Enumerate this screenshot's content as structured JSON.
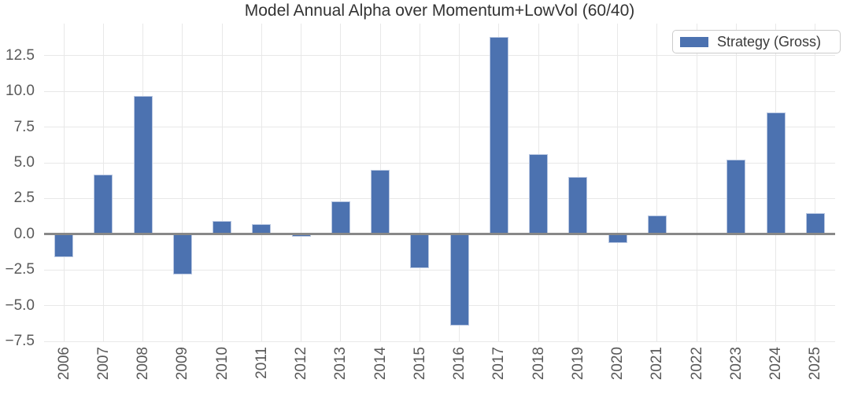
{
  "chart_data": {
    "type": "bar",
    "title": "Model Annual Alpha over Momentum+LowVol (60/40)",
    "categories": [
      "2006",
      "2007",
      "2008",
      "2009",
      "2010",
      "2011",
      "2012",
      "2013",
      "2014",
      "2015",
      "2016",
      "2017",
      "2018",
      "2019",
      "2020",
      "2021",
      "2022",
      "2023",
      "2024",
      "2025"
    ],
    "series": [
      {
        "name": "Strategy (Gross)",
        "values": [
          -1.6,
          4.2,
          9.7,
          -2.8,
          0.9,
          0.7,
          -0.2,
          2.3,
          4.5,
          -2.4,
          -6.4,
          13.8,
          5.6,
          4.0,
          -0.6,
          1.3,
          0.0,
          5.2,
          8.5,
          1.5
        ]
      }
    ],
    "xlabel": "",
    "ylabel": "",
    "ylim": [
      -7.5,
      14.75
    ],
    "yticks": [
      12.5,
      10.0,
      7.5,
      5.0,
      2.5,
      0.0,
      -2.5,
      -5.0,
      -7.5
    ],
    "ytick_labels": [
      "12.5",
      "10.0",
      "7.5",
      "5.0",
      "2.5",
      "0.0",
      "−2.5",
      "−5.0",
      "−7.5"
    ],
    "grid": "both",
    "legend": {
      "label": "Strategy (Gross)",
      "position": "upper right"
    },
    "colors": {
      "bar": "#4c72b0",
      "bar_edge": "#b9c7e1",
      "grid": "#e8e8e8",
      "zero_line": "#888888",
      "tick_label": "#595959",
      "title": "#333333",
      "background": "#ffffff"
    }
  }
}
